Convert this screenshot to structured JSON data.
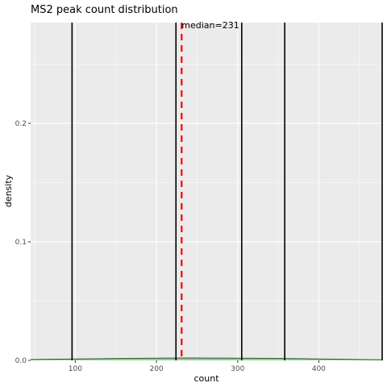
{
  "chart_data": {
    "type": "area",
    "title": "MS2 peak count distribution",
    "xlabel": "count",
    "ylabel": "density",
    "xlim": [
      45,
      478
    ],
    "ylim": [
      0,
      0.285
    ],
    "x_ticks": [
      100,
      200,
      300,
      400
    ],
    "x_tick_labels": [
      "100",
      "200",
      "300",
      "400"
    ],
    "y_ticks": [
      0.0,
      0.1,
      0.2
    ],
    "y_tick_labels": [
      "0.0",
      "0.1",
      "0.2"
    ],
    "grid": true,
    "density_curve": {
      "x": [
        45,
        100,
        150,
        200,
        231,
        250,
        300,
        350,
        400,
        450,
        478
      ],
      "y": [
        0.0008,
        0.0012,
        0.0016,
        0.0019,
        0.002,
        0.002,
        0.0019,
        0.0017,
        0.0012,
        0.0008,
        0.0005
      ],
      "fill": "#1f6b1f",
      "line": "#1f6b1f"
    },
    "vertical_lines": [
      {
        "x": 96,
        "color": "#000000"
      },
      {
        "x": 224,
        "color": "#000000"
      },
      {
        "x": 305,
        "color": "#000000"
      },
      {
        "x": 358,
        "color": "#000000"
      },
      {
        "x": 478,
        "color": "#000000"
      }
    ],
    "median": {
      "x": 231,
      "label": "median=231",
      "color": "#ff0000"
    }
  },
  "colors": {
    "panel_background": "#ebebeb",
    "grid_line": "#ffffff"
  }
}
